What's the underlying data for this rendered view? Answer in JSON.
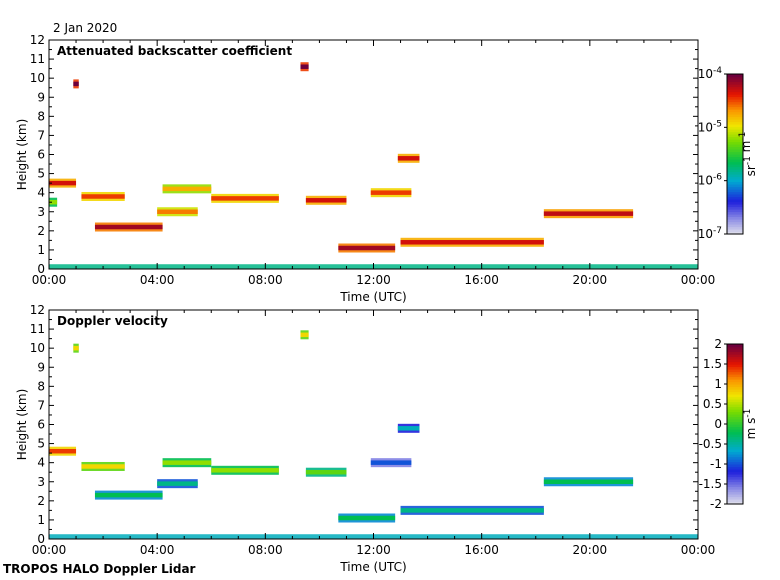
{
  "date_label": "2 Jan 2020",
  "footer": "TROPOS HALO Doppler Lidar",
  "chart_data": [
    {
      "type": "heatmap",
      "title": "Attenuated backscatter coefficient",
      "xlabel": "Time (UTC)",
      "ylabel": "Height (km)",
      "x_ticks": [
        "00:00",
        "04:00",
        "08:00",
        "12:00",
        "16:00",
        "20:00",
        "00:00"
      ],
      "xlim_hours": [
        0,
        24
      ],
      "y_ticks": [
        0,
        1,
        2,
        3,
        4,
        5,
        6,
        7,
        8,
        9,
        10,
        11,
        12
      ],
      "ylim_km": [
        0,
        12
      ],
      "colorbar": {
        "scale": "log",
        "range": [
          1e-07,
          0.0001
        ],
        "ticks": [
          "10-7",
          "10-6",
          "10-5",
          "10-4"
        ],
        "label": "sr-1 m-1"
      },
      "features": [
        {
          "t_start": 0.0,
          "t_end": 1.0,
          "height_km": 4.5,
          "level": 0.9
        },
        {
          "t_start": 0.0,
          "t_end": 0.3,
          "height_km": 3.5,
          "level": 0.6
        },
        {
          "t_start": 0.9,
          "t_end": 1.1,
          "height_km": 9.7,
          "level": 1.0
        },
        {
          "t_start": 1.2,
          "t_end": 2.8,
          "height_km": 3.8,
          "level": 0.85
        },
        {
          "t_start": 1.7,
          "t_end": 4.2,
          "height_km": 2.2,
          "level": 0.95
        },
        {
          "t_start": 4.2,
          "t_end": 6.0,
          "height_km": 4.2,
          "level": 0.75
        },
        {
          "t_start": 4.0,
          "t_end": 5.5,
          "height_km": 3.0,
          "level": 0.8
        },
        {
          "t_start": 6.0,
          "t_end": 8.5,
          "height_km": 3.7,
          "level": 0.85
        },
        {
          "t_start": 9.3,
          "t_end": 9.6,
          "height_km": 10.6,
          "level": 1.0
        },
        {
          "t_start": 9.5,
          "t_end": 11.0,
          "height_km": 3.6,
          "level": 0.9
        },
        {
          "t_start": 10.7,
          "t_end": 12.8,
          "height_km": 1.1,
          "level": 0.95
        },
        {
          "t_start": 11.9,
          "t_end": 13.4,
          "height_km": 4.0,
          "level": 0.85
        },
        {
          "t_start": 12.9,
          "t_end": 13.7,
          "height_km": 5.8,
          "level": 0.9
        },
        {
          "t_start": 13.0,
          "t_end": 18.3,
          "height_km": 1.4,
          "level": 0.9
        },
        {
          "t_start": 18.3,
          "t_end": 21.6,
          "height_km": 2.9,
          "level": 0.92
        }
      ]
    },
    {
      "type": "heatmap",
      "title": "Doppler velocity",
      "xlabel": "Time (UTC)",
      "ylabel": "Height (km)",
      "x_ticks": [
        "00:00",
        "04:00",
        "08:00",
        "12:00",
        "16:00",
        "20:00",
        "00:00"
      ],
      "xlim_hours": [
        0,
        24
      ],
      "y_ticks": [
        0,
        1,
        2,
        3,
        4,
        5,
        6,
        7,
        8,
        9,
        10,
        11,
        12
      ],
      "ylim_km": [
        0,
        12
      ],
      "colorbar": {
        "scale": "linear",
        "range": [
          -2,
          2
        ],
        "ticks": [
          "-2",
          "-1.5",
          "-1",
          "-0.5",
          "0",
          "0.5",
          "1",
          "1.5",
          "2"
        ],
        "label": "m s-1"
      },
      "features": [
        {
          "t_start": 0.0,
          "t_end": 1.0,
          "height_km": 4.6,
          "level": 0.85
        },
        {
          "t_start": 0.9,
          "t_end": 1.1,
          "height_km": 10.0,
          "level": 0.7
        },
        {
          "t_start": 1.2,
          "t_end": 2.8,
          "height_km": 3.8,
          "level": 0.7
        },
        {
          "t_start": 1.7,
          "t_end": 4.2,
          "height_km": 2.3,
          "level": 0.45
        },
        {
          "t_start": 4.2,
          "t_end": 6.0,
          "height_km": 4.0,
          "level": 0.6
        },
        {
          "t_start": 4.0,
          "t_end": 5.5,
          "height_km": 2.9,
          "level": 0.4
        },
        {
          "t_start": 6.0,
          "t_end": 8.5,
          "height_km": 3.6,
          "level": 0.6
        },
        {
          "t_start": 9.3,
          "t_end": 9.6,
          "height_km": 10.7,
          "level": 0.7
        },
        {
          "t_start": 9.5,
          "t_end": 11.0,
          "height_km": 3.5,
          "level": 0.55
        },
        {
          "t_start": 10.7,
          "t_end": 12.8,
          "height_km": 1.1,
          "level": 0.45
        },
        {
          "t_start": 11.9,
          "t_end": 13.4,
          "height_km": 4.0,
          "level": 0.25
        },
        {
          "t_start": 12.9,
          "t_end": 13.7,
          "height_km": 5.8,
          "level": 0.35
        },
        {
          "t_start": 13.0,
          "t_end": 18.3,
          "height_km": 1.5,
          "level": 0.4
        },
        {
          "t_start": 18.3,
          "t_end": 21.6,
          "height_km": 3.0,
          "level": 0.45
        }
      ]
    }
  ]
}
